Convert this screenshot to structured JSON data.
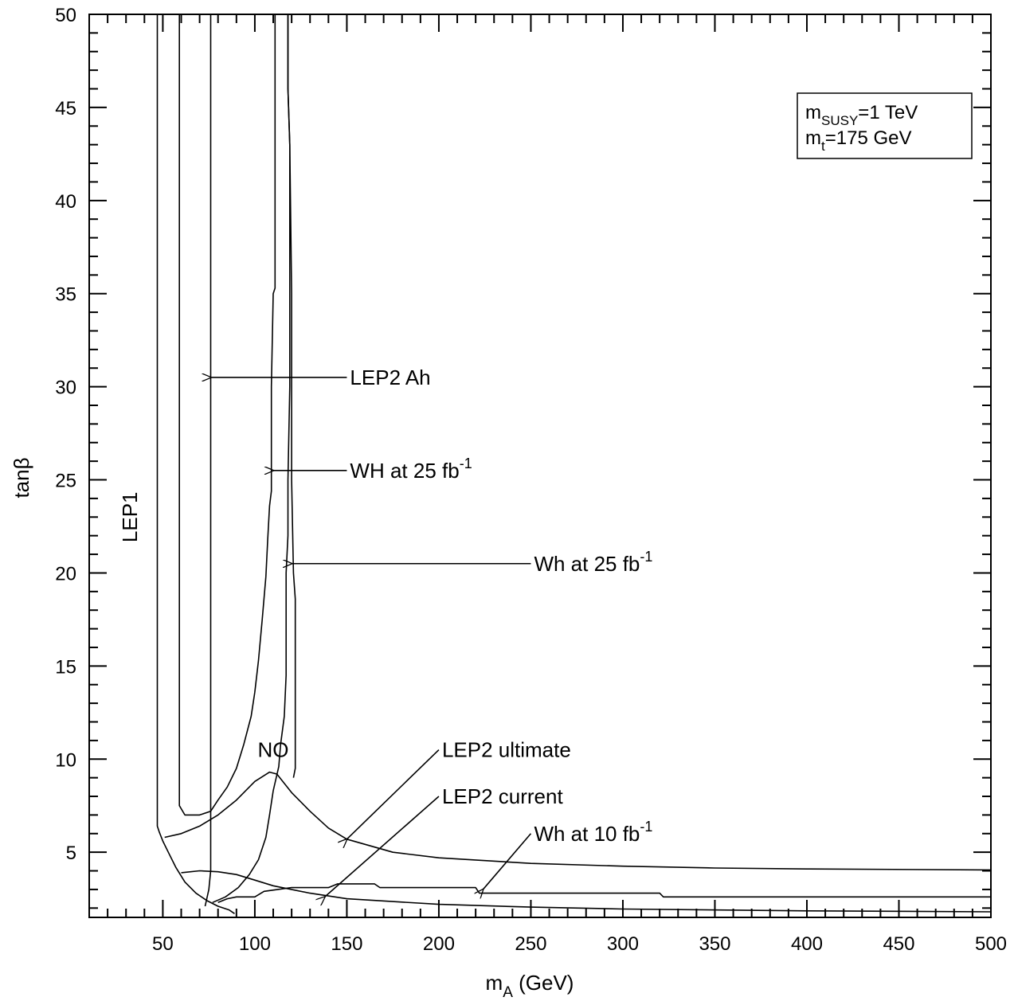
{
  "chart_data": {
    "type": "line",
    "xlabel": "m",
    "xlabel_sub": "A",
    "xlabel_unit": " (GeV)",
    "ylabel": "tanβ",
    "xlim": [
      10,
      500
    ],
    "ylim": [
      1.5,
      50
    ],
    "x_ticks": [
      "50",
      "100",
      "150",
      "200",
      "250",
      "300",
      "350",
      "400",
      "450",
      "500"
    ],
    "y_ticks": [
      "5",
      "10",
      "15",
      "20",
      "25",
      "30",
      "35",
      "40",
      "45",
      "50"
    ],
    "infobox": {
      "line1_main": "m",
      "line1_sub": "SUSY",
      "line1_rest": "=1 TeV",
      "line2_main": "m",
      "line2_sub": "t",
      "line2_rest": "=175 GeV"
    },
    "curves": [
      {
        "id": "lep1",
        "points": [
          [
            47,
            50
          ],
          [
            47,
            6.4
          ],
          [
            48,
            6.1
          ],
          [
            50,
            5.6
          ],
          [
            53,
            5
          ],
          [
            57,
            4.2
          ],
          [
            62,
            3.4
          ],
          [
            68,
            2.8
          ],
          [
            74,
            2.4
          ],
          [
            80,
            2.1
          ],
          [
            86,
            1.9
          ],
          [
            89,
            1.7
          ]
        ]
      },
      {
        "id": "lep2-ah",
        "points": [
          [
            76,
            50
          ],
          [
            76,
            4
          ],
          [
            75,
            3
          ],
          [
            73,
            2.1
          ]
        ]
      },
      {
        "id": "wh-25-upper",
        "points": [
          [
            59,
            50
          ],
          [
            59,
            7.5
          ],
          [
            62,
            7
          ],
          [
            70,
            7
          ],
          [
            76,
            7.2
          ],
          [
            80,
            7.8
          ],
          [
            85,
            8.5
          ],
          [
            90,
            9.5
          ],
          [
            94,
            10.8
          ],
          [
            98,
            12.3
          ],
          [
            100,
            13.6
          ],
          [
            102,
            15.3
          ],
          [
            104,
            17.5
          ],
          [
            106,
            19.8
          ],
          [
            107,
            21.8
          ],
          [
            108,
            23.6
          ],
          [
            109,
            24.4
          ],
          [
            109,
            30
          ],
          [
            110,
            35
          ],
          [
            111,
            35.3
          ],
          [
            111,
            40
          ],
          [
            111,
            50
          ]
        ]
      },
      {
        "id": "wh-25-lower",
        "points": [
          [
            77,
            2.3
          ],
          [
            84,
            2.6
          ],
          [
            91,
            3.1
          ],
          [
            97,
            3.8
          ],
          [
            102,
            4.6
          ],
          [
            106,
            5.8
          ],
          [
            108,
            7
          ],
          [
            110,
            8.3
          ],
          [
            113,
            9.6
          ],
          [
            114,
            10.8
          ],
          [
            116,
            12.3
          ],
          [
            117,
            14.5
          ],
          [
            117,
            17
          ],
          [
            117,
            20
          ],
          [
            118,
            22
          ],
          [
            118,
            25
          ],
          [
            119,
            30
          ],
          [
            119,
            35
          ],
          [
            119,
            43
          ],
          [
            118,
            46
          ],
          [
            118,
            50
          ]
        ]
      },
      {
        "id": "wh-25-right",
        "points": [
          [
            118,
            50
          ],
          [
            118,
            46
          ],
          [
            119,
            43
          ],
          [
            120,
            35
          ],
          [
            120,
            30
          ],
          [
            120,
            25
          ],
          [
            121,
            20
          ],
          [
            122,
            18.6
          ],
          [
            122,
            15
          ],
          [
            122,
            12
          ],
          [
            122,
            9.5
          ],
          [
            121,
            9
          ]
        ]
      },
      {
        "id": "lep2-ultimate",
        "points": [
          [
            51,
            5.8
          ],
          [
            60,
            6
          ],
          [
            70,
            6.4
          ],
          [
            80,
            7
          ],
          [
            90,
            7.8
          ],
          [
            100,
            8.8
          ],
          [
            108,
            9.3
          ],
          [
            112,
            9.2
          ],
          [
            120,
            8.2
          ],
          [
            130,
            7.2
          ],
          [
            140,
            6.3
          ],
          [
            150,
            5.7
          ],
          [
            175,
            5
          ],
          [
            200,
            4.7
          ],
          [
            250,
            4.4
          ],
          [
            300,
            4.25
          ],
          [
            350,
            4.15
          ],
          [
            400,
            4.1
          ],
          [
            500,
            4.05
          ]
        ]
      },
      {
        "id": "lep2-current",
        "points": [
          [
            60,
            3.9
          ],
          [
            70,
            4
          ],
          [
            80,
            3.95
          ],
          [
            90,
            3.8
          ],
          [
            100,
            3.5
          ],
          [
            110,
            3.2
          ],
          [
            130,
            2.8
          ],
          [
            150,
            2.5
          ],
          [
            200,
            2.2
          ],
          [
            250,
            2.05
          ],
          [
            300,
            1.95
          ],
          [
            400,
            1.85
          ],
          [
            500,
            1.8
          ]
        ]
      },
      {
        "id": "wh-10",
        "points": [
          [
            80,
            2.3
          ],
          [
            85,
            2.5
          ],
          [
            90,
            2.6
          ],
          [
            100,
            2.6
          ],
          [
            105,
            2.9
          ],
          [
            120,
            3.1
          ],
          [
            140,
            3.1
          ],
          [
            145,
            3.3
          ],
          [
            165,
            3.3
          ],
          [
            168,
            3.1
          ],
          [
            220,
            3.1
          ],
          [
            222,
            2.8
          ],
          [
            320,
            2.8
          ],
          [
            322,
            2.6
          ],
          [
            500,
            2.6
          ]
        ]
      }
    ],
    "annotations": [
      {
        "label": "LEP2 Ah",
        "sup": "",
        "text_x": 150,
        "arrow_from": [
          150,
          30.5
        ],
        "arrow_to": [
          76,
          30.5
        ]
      },
      {
        "label": "WH at 25 fb",
        "sup": "-1",
        "text_x": 150,
        "arrow_from": [
          150,
          25.5
        ],
        "arrow_to": [
          110,
          25.5
        ]
      },
      {
        "label": "Wh at 25 fb",
        "sup": "-1",
        "text_x": 250,
        "arrow_from": [
          250,
          20.5
        ],
        "arrow_to": [
          120,
          20.5
        ]
      },
      {
        "label": "LEP2 ultimate",
        "sup": "",
        "text_x": 200,
        "arrow_from": [
          200,
          10.5
        ],
        "arrow_to": [
          150,
          5.7
        ]
      },
      {
        "label": "LEP2 current",
        "sup": "",
        "text_x": 200,
        "arrow_from": [
          200,
          8
        ],
        "arrow_to": [
          138,
          2.6
        ]
      },
      {
        "label": "Wh at 10 fb",
        "sup": "-1",
        "text_x": 250,
        "arrow_from": [
          250,
          6
        ],
        "arrow_to": [
          224,
          3
        ]
      }
    ],
    "region_labels": [
      {
        "text": "NO",
        "x": 110,
        "y": 10.5
      },
      {
        "text": "LEP1",
        "x": 32,
        "y": 23,
        "rotated": true
      }
    ]
  }
}
